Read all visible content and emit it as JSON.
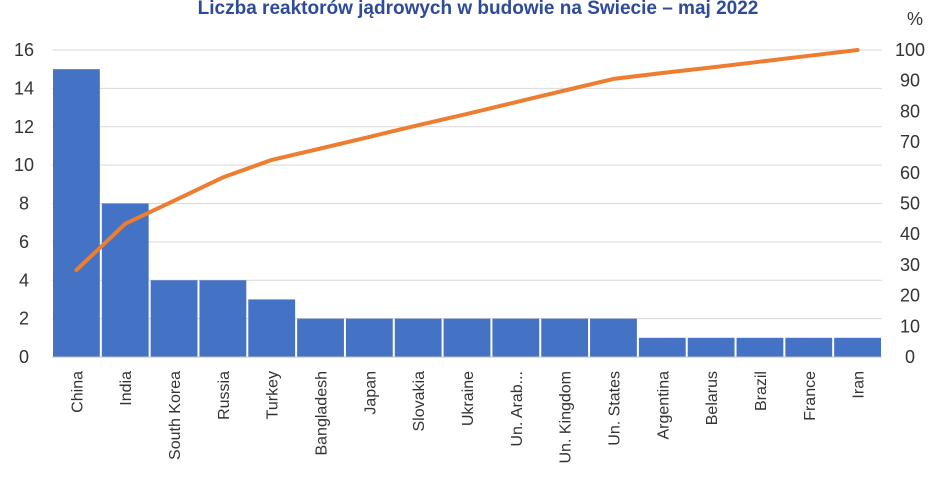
{
  "chart_data": {
    "type": "bar",
    "title": "Liczba reaktorów jądrowych w budowie na Świecie – maj 2022",
    "categories": [
      "China",
      "India",
      "South Korea",
      "Russia",
      "Turkey",
      "Bangladesh",
      "Japan",
      "Slovakia",
      "Ukraine",
      "Un. Arab...",
      "Un. Kingdom",
      "Un. States",
      "Argentina",
      "Belarus",
      "Brazil",
      "France",
      "Iran"
    ],
    "series": [
      {
        "type": "bar",
        "axis": "left",
        "color": "#4472C4",
        "values": [
          15,
          8,
          4,
          4,
          3,
          2,
          2,
          2,
          2,
          2,
          2,
          2,
          1,
          1,
          1,
          1,
          1
        ]
      },
      {
        "type": "line",
        "axis": "right",
        "color": "#ED7D31",
        "values": [
          28.3,
          43.4,
          50.9,
          58.5,
          64.2,
          67.9,
          71.7,
          75.5,
          79.2,
          83.0,
          86.8,
          90.6,
          92.5,
          94.3,
          96.2,
          98.1,
          100
        ]
      }
    ],
    "y_left": {
      "min": 0,
      "max": 16,
      "ticks": [
        0,
        2,
        4,
        6,
        8,
        10,
        12,
        14,
        16
      ]
    },
    "y_right": {
      "unit": "%",
      "min": 0,
      "max": 100,
      "ticks": [
        0,
        10,
        20,
        30,
        40,
        50,
        60,
        70,
        80,
        90,
        100
      ]
    },
    "grid": true,
    "legend": "none",
    "gridline_color": "#D9D9D9",
    "axis_line_color": "#BFBFBF"
  }
}
